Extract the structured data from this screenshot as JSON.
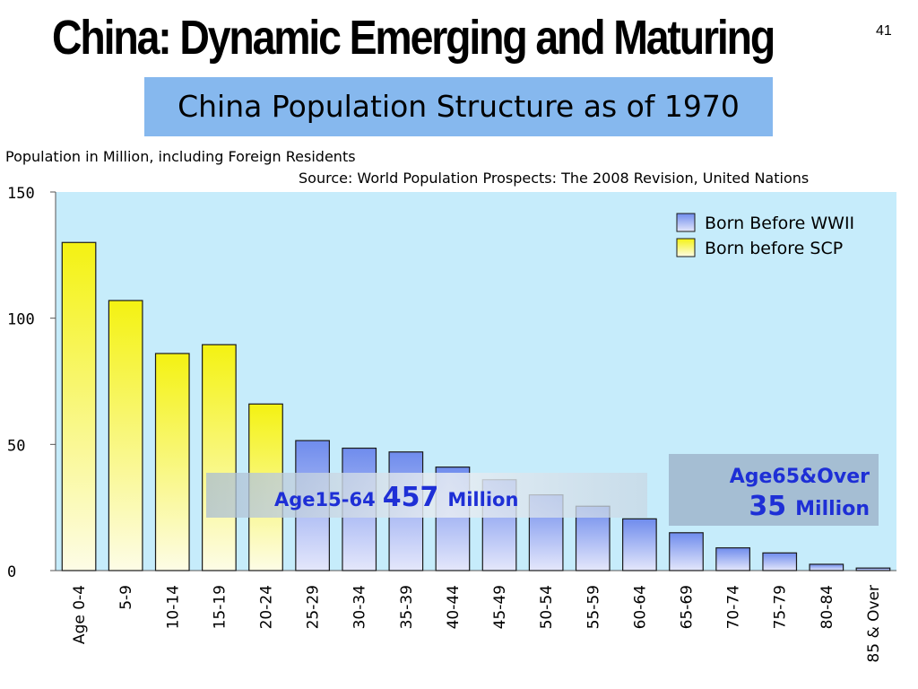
{
  "slide": {
    "title": "China: Dynamic Emerging and Maturing",
    "page_number": "41"
  },
  "colors": {
    "plot_background": "#c6ecfb",
    "born_before_wwii": "#7f97ee",
    "born_before_scp": "#f2f11b",
    "title_box": "#86b8ee",
    "callout_text": "#1e2fd6"
  },
  "chart_data": {
    "type": "bar",
    "title": "China Population Structure as of 1970",
    "subtitle": "Population in Million, including Foreign Residents",
    "source": "Source: World Population Prospects: The 2008 Revision, United Nations",
    "ylim": [
      0,
      150
    ],
    "yticks": [
      0,
      50,
      100,
      150
    ],
    "grid": false,
    "legend_position": "top-right",
    "categories": [
      "Age 0-4",
      "5-9",
      "10-14",
      "15-19",
      "20-24",
      "25-29",
      "30-34",
      "35-39",
      "40-44",
      "45-49",
      "50-54",
      "55-59",
      "60-64",
      "65-69",
      "70-74",
      "75-79",
      "80-84",
      "85 & Over"
    ],
    "values": [
      130,
      107,
      86,
      89.5,
      66,
      51.5,
      48.5,
      47,
      41,
      36,
      30,
      25.5,
      20.5,
      15,
      9,
      7,
      2.5,
      1
    ],
    "series": [
      {
        "name": "Born Before WWII",
        "color": "#7f97ee",
        "categories": [
          "25-29",
          "30-34",
          "35-39",
          "40-44",
          "45-49",
          "50-54",
          "55-59",
          "60-64",
          "65-69",
          "70-74",
          "75-79",
          "80-84",
          "85 & Over"
        ]
      },
      {
        "name": "Born before SCP",
        "color": "#f2f11b",
        "categories": [
          "Age 0-4",
          "5-9",
          "10-14",
          "15-19",
          "20-24"
        ]
      }
    ],
    "annotations": [
      {
        "label": "Age15-64",
        "number": "457",
        "unit": "Million"
      },
      {
        "label": "Age65&Over",
        "number": "35",
        "unit": "Million"
      }
    ]
  }
}
